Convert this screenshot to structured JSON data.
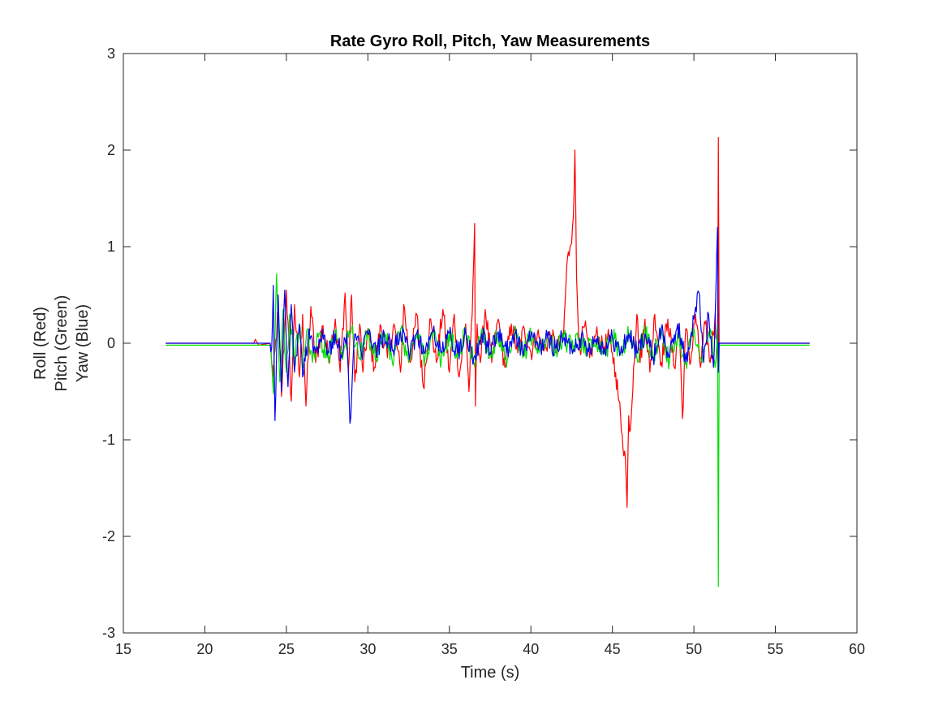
{
  "chart_data": {
    "type": "line",
    "title": "Rate Gyro Roll, Pitch, Yaw  Measurements",
    "xlabel": "Time (s)",
    "ylabel_lines": [
      "Roll (Red)",
      "Pitch (Green)",
      "Yaw (Blue)"
    ],
    "xlim": [
      15,
      60
    ],
    "ylim": [
      -3,
      3
    ],
    "xticks": [
      15,
      20,
      25,
      30,
      35,
      40,
      45,
      50,
      55,
      60
    ],
    "yticks": [
      -3,
      -2,
      -1,
      0,
      1,
      2,
      3
    ],
    "grid": false,
    "series": [
      {
        "color": "#ff0000",
        "x": [
          17.6,
          23.0,
          23.1,
          23.3,
          24.0,
          24.2,
          24.5,
          24.7,
          25.0,
          25.3,
          25.5,
          25.8,
          26.0,
          26.2,
          26.5,
          26.8,
          27.2,
          27.6,
          28.0,
          28.3,
          28.6,
          28.8,
          29.0,
          29.2,
          29.5,
          29.7,
          30.0,
          30.4,
          30.8,
          31.2,
          31.6,
          32.0,
          32.2,
          32.6,
          33.0,
          33.4,
          33.8,
          34.2,
          34.6,
          35.0,
          35.3,
          35.6,
          36.0,
          36.2,
          36.4,
          36.55,
          36.6,
          36.7,
          36.9,
          37.2,
          37.6,
          38.0,
          38.4,
          38.8,
          39.2,
          39.6,
          40.0,
          40.4,
          40.8,
          41.2,
          41.6,
          42.0,
          42.2,
          42.4,
          42.55,
          42.6,
          42.7,
          42.8,
          42.9,
          43.0,
          43.3,
          43.6,
          44.0,
          44.4,
          44.8,
          45.0,
          45.2,
          45.4,
          45.6,
          45.8,
          45.9,
          46.0,
          46.1,
          46.3,
          46.5,
          46.7,
          47.0,
          47.3,
          47.6,
          48.0,
          48.4,
          48.8,
          49.1,
          49.3,
          49.5,
          49.8,
          50.1,
          50.4,
          50.7,
          51.0,
          51.3,
          51.45,
          51.5,
          51.55,
          51.7,
          52.0,
          55.0,
          57.1
        ],
        "y": [
          0.0,
          0.0,
          0.04,
          -0.02,
          0.0,
          -0.35,
          0.35,
          -0.55,
          0.55,
          -0.6,
          0.4,
          -0.35,
          0.3,
          -0.65,
          0.38,
          -0.2,
          0.18,
          -0.15,
          0.25,
          -0.3,
          0.52,
          -0.3,
          0.5,
          -0.4,
          0.2,
          -0.3,
          0.15,
          -0.25,
          0.18,
          -0.15,
          0.2,
          -0.3,
          0.4,
          -0.2,
          0.3,
          -0.45,
          0.25,
          -0.2,
          0.35,
          -0.3,
          0.3,
          -0.35,
          0.2,
          -0.5,
          0.3,
          1.24,
          -0.65,
          0.2,
          -0.2,
          0.35,
          -0.2,
          0.25,
          -0.25,
          0.2,
          -0.1,
          0.15,
          -0.1,
          0.1,
          -0.08,
          0.08,
          -0.05,
          0.05,
          0.8,
          1.0,
          1.2,
          1.3,
          2.0,
          0.7,
          0.2,
          -0.05,
          0.18,
          -0.15,
          0.1,
          -0.05,
          0.05,
          -0.1,
          -0.3,
          -0.6,
          -0.95,
          -1.2,
          -1.7,
          -0.75,
          -0.9,
          -0.25,
          0.3,
          -0.2,
          0.25,
          -0.3,
          0.3,
          -0.2,
          0.25,
          -0.25,
          0.2,
          -0.78,
          0.15,
          -0.2,
          0.3,
          -0.25,
          0.2,
          -0.2,
          0.3,
          -0.2,
          2.13,
          0.0,
          0.0,
          0.0,
          0.0,
          0.0
        ]
      },
      {
        "color": "#00dd00",
        "x": [
          17.6,
          24.0,
          24.2,
          24.4,
          24.6,
          24.8,
          25.0,
          25.2,
          25.5,
          25.8,
          26.0,
          26.3,
          26.6,
          27.0,
          27.5,
          28.0,
          28.5,
          29.0,
          29.5,
          30.0,
          30.5,
          31.0,
          31.5,
          32.0,
          32.5,
          33.0,
          33.5,
          34.0,
          34.5,
          35.0,
          35.5,
          36.0,
          36.5,
          37.0,
          37.5,
          38.0,
          38.5,
          39.0,
          39.5,
          40.0,
          40.5,
          41.0,
          41.5,
          42.0,
          42.5,
          43.0,
          43.5,
          44.0,
          44.5,
          45.0,
          45.5,
          46.0,
          46.5,
          47.0,
          47.5,
          48.0,
          48.5,
          49.0,
          49.5,
          50.0,
          50.5,
          51.0,
          51.3,
          51.45,
          51.5,
          51.55,
          51.6,
          55.0,
          57.1
        ],
        "y": [
          -0.02,
          -0.02,
          -0.52,
          0.72,
          -0.4,
          0.35,
          -0.3,
          0.3,
          -0.2,
          0.2,
          -0.25,
          0.15,
          -0.2,
          0.1,
          -0.15,
          0.12,
          -0.1,
          0.15,
          -0.15,
          0.1,
          -0.15,
          0.12,
          -0.2,
          0.15,
          -0.2,
          0.1,
          -0.15,
          0.12,
          -0.2,
          0.1,
          -0.15,
          0.12,
          -0.2,
          0.15,
          -0.15,
          0.1,
          -0.25,
          0.1,
          -0.15,
          0.1,
          -0.1,
          0.08,
          -0.08,
          0.05,
          -0.05,
          0.05,
          -0.05,
          0.05,
          -0.1,
          0.08,
          -0.1,
          0.1,
          -0.15,
          0.12,
          -0.15,
          0.15,
          -0.2,
          0.1,
          -0.2,
          0.15,
          -0.2,
          0.15,
          -0.25,
          0.2,
          -2.52,
          -0.02,
          -0.02,
          -0.02,
          -0.02
        ]
      },
      {
        "color": "#0000ee",
        "x": [
          17.6,
          24.0,
          24.1,
          24.2,
          24.3,
          24.5,
          24.7,
          24.9,
          25.1,
          25.3,
          25.5,
          25.8,
          26.0,
          26.4,
          26.8,
          27.2,
          27.6,
          28.0,
          28.4,
          28.7,
          28.9,
          29.2,
          29.6,
          30.0,
          30.5,
          31.0,
          31.5,
          32.0,
          32.5,
          33.0,
          33.5,
          34.0,
          34.5,
          35.0,
          35.5,
          36.0,
          36.5,
          37.0,
          37.5,
          38.0,
          38.5,
          39.0,
          39.5,
          40.0,
          40.5,
          41.0,
          41.5,
          42.0,
          42.5,
          43.0,
          43.5,
          44.0,
          44.5,
          45.0,
          45.5,
          46.0,
          46.5,
          47.0,
          47.5,
          48.0,
          48.5,
          49.0,
          49.5,
          50.0,
          50.3,
          50.6,
          50.9,
          51.2,
          51.45,
          51.5,
          51.55,
          51.6,
          55.0,
          57.1
        ],
        "y": [
          0.0,
          0.0,
          -0.05,
          0.6,
          -0.8,
          0.5,
          -0.5,
          0.55,
          -0.45,
          0.4,
          -0.3,
          0.2,
          -0.35,
          0.15,
          -0.1,
          0.15,
          -0.1,
          0.1,
          -0.15,
          0.1,
          -0.83,
          0.1,
          -0.1,
          0.1,
          -0.1,
          0.1,
          -0.08,
          0.12,
          -0.1,
          0.1,
          -0.1,
          0.12,
          -0.1,
          0.1,
          -0.1,
          0.12,
          -0.15,
          0.1,
          -0.1,
          0.12,
          -0.1,
          0.1,
          -0.1,
          0.08,
          -0.05,
          0.05,
          -0.05,
          0.05,
          -0.05,
          0.05,
          -0.05,
          0.05,
          -0.05,
          0.05,
          -0.1,
          0.1,
          -0.1,
          0.1,
          -0.15,
          0.15,
          -0.15,
          0.2,
          -0.2,
          0.25,
          0.53,
          -0.2,
          0.3,
          -0.25,
          1.2,
          -0.3,
          0.0,
          0.0,
          0.0,
          0.0
        ]
      }
    ]
  }
}
